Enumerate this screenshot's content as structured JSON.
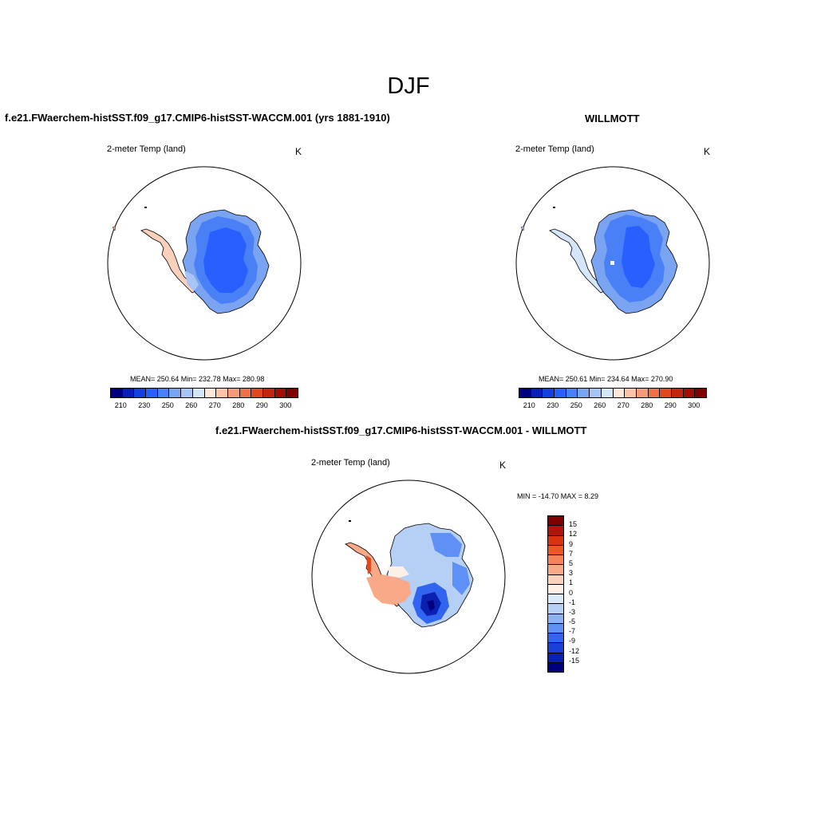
{
  "title": "DJF",
  "panels": {
    "left": {
      "title": "f.e21.FWaerchem-histSST.f09_g17.CMIP6-histSST-WACCM.001 (yrs 1881-1910)",
      "variable": "2-meter Temp (land)",
      "units": "K",
      "stats": "MEAN= 250.64  Min= 232.78  Max= 280.98"
    },
    "right": {
      "title": "WILLMOTT",
      "variable": "2-meter Temp (land)",
      "units": "K",
      "stats": "MEAN= 250.61  Min= 234.64  Max= 270.90"
    },
    "diff": {
      "title": "f.e21.FWaerchem-histSST.f09_g17.CMIP6-histSST-WACCM.001 - WILLMOTT",
      "variable": "2-meter Temp (land)",
      "units": "K",
      "minmax": "MIN = -14.70 MAX =   8.29"
    }
  },
  "colorbar_abs": {
    "ticks": [
      "210",
      "230",
      "250",
      "260",
      "270",
      "280",
      "290",
      "300"
    ],
    "colors": [
      "#00007f",
      "#0a1fb8",
      "#1540e0",
      "#2a5fff",
      "#4a80f5",
      "#7aa3f2",
      "#a7c4f5",
      "#d5e5fa",
      "#fde8d8",
      "#fbc3a8",
      "#f59b7a",
      "#ef7048",
      "#e2481e",
      "#c4250e",
      "#a10e06",
      "#7f0000"
    ]
  },
  "colorbar_diff": {
    "labels": [
      "15",
      "12",
      "9",
      "7",
      "5",
      "3",
      "1",
      "0",
      "-1",
      "-3",
      "-5",
      "-7",
      "-9",
      "-12",
      "-15"
    ],
    "colors": [
      "#7f0000",
      "#b0140a",
      "#d9330f",
      "#f0552a",
      "#f5835a",
      "#f8aa88",
      "#fbd1bc",
      "#fdf0e6",
      "#dbe8f8",
      "#b5cff5",
      "#8cb2f5",
      "#5e90f5",
      "#3165f0",
      "#1a3fd8",
      "#0a20b0",
      "#00007f"
    ]
  }
}
